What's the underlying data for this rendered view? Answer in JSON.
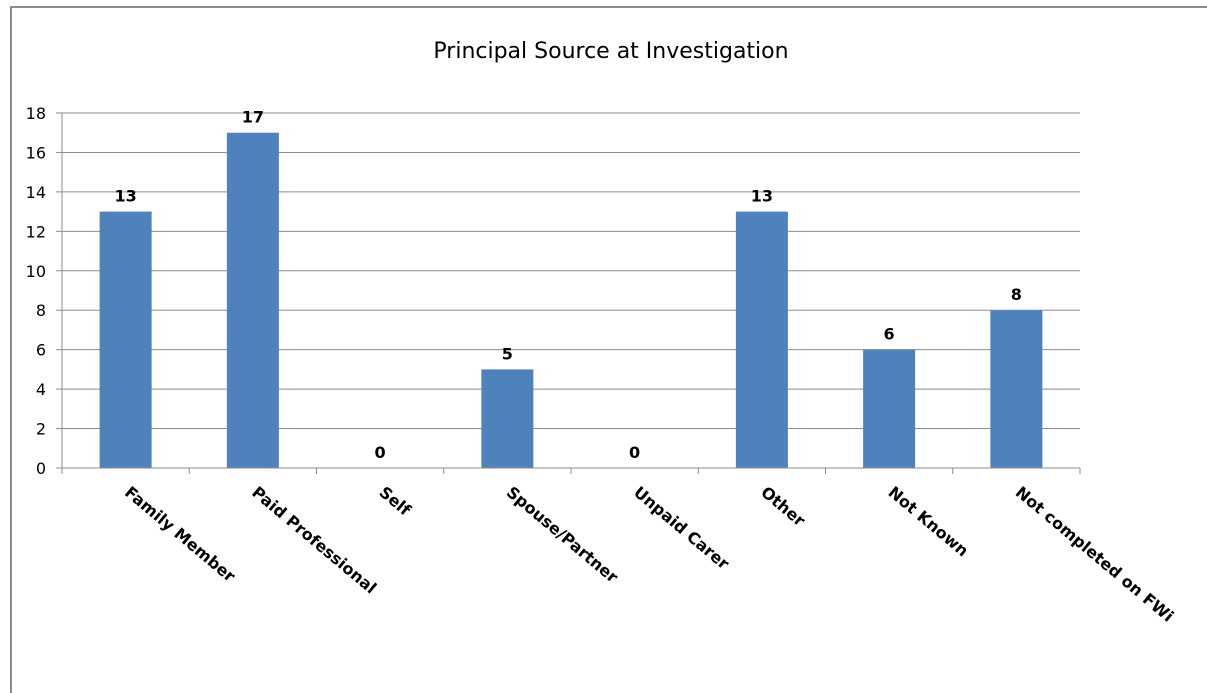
{
  "chart_data": {
    "type": "bar",
    "title": "Principal Source at Investigation",
    "categories": [
      "Family Member",
      "Paid Professional",
      "Self",
      "Spouse/Partner",
      "Unpaid Carer",
      "Other",
      "Not Known",
      "Not completed on FWi"
    ],
    "values": [
      13,
      17,
      0,
      5,
      0,
      13,
      6,
      8
    ],
    "ylim": [
      0,
      18
    ],
    "yticks": [
      0,
      2,
      4,
      6,
      8,
      10,
      12,
      14,
      16,
      18
    ],
    "grid": true,
    "legend": "none",
    "bar_color": "#4f81bd",
    "data_labels": true
  }
}
